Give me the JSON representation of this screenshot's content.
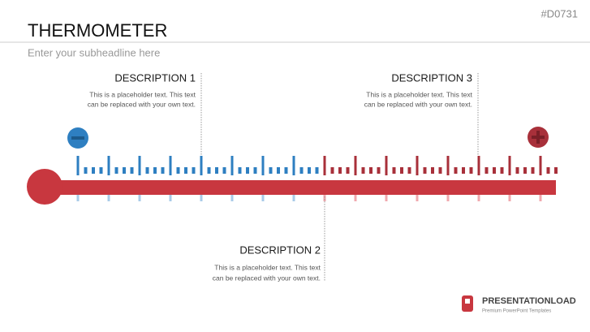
{
  "header": {
    "code": "#D0731",
    "title": "THERMOMETER",
    "subtitle": "Enter your subheadline here"
  },
  "descriptions": [
    {
      "title": "DESCRIPTION 1",
      "lines": [
        "This is a placeholder text. This text",
        "can be replaced with your own text."
      ]
    },
    {
      "title": "DESCRIPTION 2",
      "lines": [
        "This is a placeholder text. This text",
        "can be replaced with your own text."
      ]
    },
    {
      "title": "DESCRIPTION 3",
      "lines": [
        "This is a placeholder text. This text",
        "can be replaced with your own text."
      ]
    }
  ],
  "logo": {
    "name": "PRESENTATIONLOAD",
    "tagline": "Premium PowerPoint Templates"
  }
}
